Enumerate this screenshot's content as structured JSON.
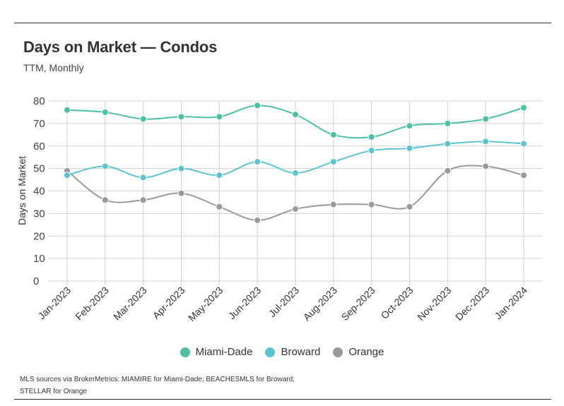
{
  "header": {
    "title": "Days on Market — Condos",
    "subtitle": "TTM, Monthly"
  },
  "footer": {
    "source_line1": "MLS sources via BrokerMetrics: MIAMIRE for Miami-Dade; BEACHESMLS for Broward;",
    "source_line2": "STELLAR for Orange"
  },
  "chart_data": {
    "type": "line",
    "title": "Days on Market — Condos",
    "subtitle": "TTM, Monthly",
    "xlabel": "",
    "ylabel": "Days on Market",
    "ylim": [
      0,
      80
    ],
    "yticks": [
      0,
      10,
      20,
      30,
      40,
      50,
      60,
      70,
      80
    ],
    "grid": true,
    "legend_position": "bottom-center",
    "categories": [
      "Jan-2023",
      "Feb-2023",
      "Mar-2023",
      "Apr-2023",
      "May-2023",
      "Jun-2023",
      "Jul-2023",
      "Aug-2023",
      "Sep-2023",
      "Oct-2023",
      "Nov-2023",
      "Dec-2023",
      "Jan-2024"
    ],
    "series": [
      {
        "name": "Miami-Dade",
        "color": "#4cbfa6",
        "values": [
          76,
          75,
          72,
          73,
          73,
          78,
          74,
          65,
          64,
          69,
          70,
          72,
          77
        ]
      },
      {
        "name": "Broward",
        "color": "#5dc4cf",
        "values": [
          47,
          51,
          46,
          50,
          47,
          53,
          48,
          53,
          58,
          59,
          61,
          62,
          61
        ]
      },
      {
        "name": "Orange",
        "color": "#999999",
        "values": [
          49,
          36,
          36,
          39,
          33,
          27,
          32,
          34,
          34,
          33,
          49,
          51,
          47
        ]
      }
    ]
  }
}
